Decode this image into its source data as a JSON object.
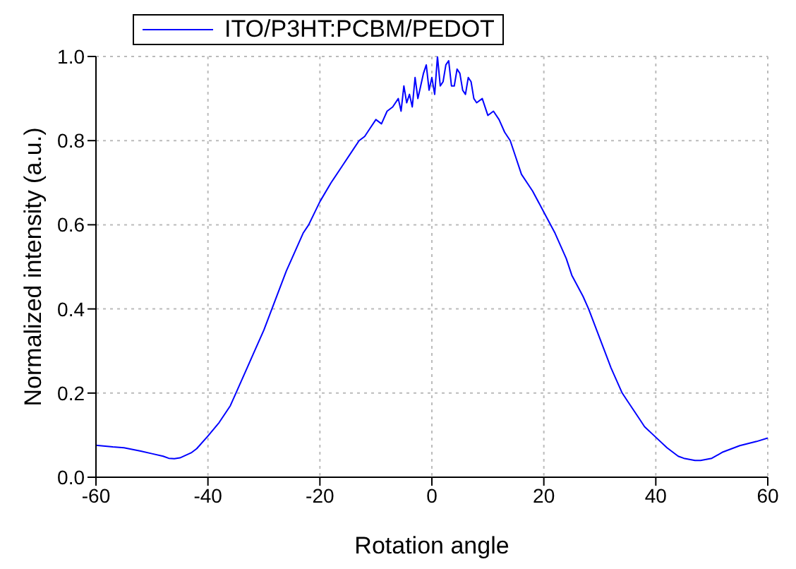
{
  "chart_data": {
    "type": "line",
    "xlabel": "Rotation angle",
    "ylabel": "Normalized intensity (a.u.)",
    "x": [
      -60,
      -57,
      -55,
      -52,
      -50,
      -48,
      -47,
      -46,
      -45,
      -43,
      -42,
      -40,
      -38,
      -36,
      -35,
      -33,
      -32,
      -30,
      -28,
      -26,
      -25,
      -23,
      -22,
      -20,
      -18,
      -16,
      -14,
      -13,
      -12,
      -11,
      -10,
      -9,
      -8,
      -7,
      -6,
      -5.5,
      -5,
      -4.5,
      -4,
      -3.5,
      -3,
      -2.5,
      -2,
      -1.5,
      -1,
      -0.5,
      0,
      0.5,
      1,
      1.5,
      2,
      2.5,
      3,
      3.5,
      4,
      4.5,
      5,
      5.5,
      6,
      6.5,
      7,
      7.5,
      8,
      9,
      10,
      11,
      12,
      13,
      14,
      15,
      16,
      18,
      20,
      22,
      24,
      25,
      27,
      28,
      30,
      32,
      34,
      35,
      37,
      38,
      40,
      42,
      44,
      45,
      47,
      48,
      50,
      52,
      55,
      58,
      60
    ],
    "series": [
      {
        "name": "ITO/P3HT:PCBM/PEDOT",
        "color": "#0000ff",
        "values": [
          0.076,
          0.072,
          0.07,
          0.062,
          0.056,
          0.05,
          0.045,
          0.044,
          0.046,
          0.058,
          0.068,
          0.098,
          0.13,
          0.17,
          0.2,
          0.26,
          0.29,
          0.35,
          0.42,
          0.49,
          0.52,
          0.58,
          0.6,
          0.655,
          0.7,
          0.74,
          0.78,
          0.8,
          0.81,
          0.83,
          0.85,
          0.84,
          0.87,
          0.88,
          0.9,
          0.87,
          0.93,
          0.89,
          0.91,
          0.88,
          0.95,
          0.9,
          0.93,
          0.96,
          0.98,
          0.92,
          0.95,
          0.91,
          1.0,
          0.93,
          0.94,
          0.98,
          0.99,
          0.93,
          0.93,
          0.97,
          0.96,
          0.92,
          0.91,
          0.95,
          0.94,
          0.9,
          0.89,
          0.9,
          0.86,
          0.87,
          0.85,
          0.82,
          0.8,
          0.76,
          0.72,
          0.68,
          0.63,
          0.58,
          0.52,
          0.48,
          0.43,
          0.4,
          0.33,
          0.26,
          0.2,
          0.18,
          0.14,
          0.12,
          0.095,
          0.07,
          0.05,
          0.045,
          0.04,
          0.04,
          0.045,
          0.06,
          0.075,
          0.085,
          0.093
        ]
      }
    ],
    "xlim": [
      -60,
      60
    ],
    "xticks": [
      -60,
      -40,
      -20,
      0,
      20,
      40,
      60
    ],
    "ylim": [
      0,
      1
    ],
    "yticks": [
      {
        "value": 0,
        "label": "0.0"
      },
      {
        "value": 0.2,
        "label": "0.2"
      },
      {
        "value": 0.4,
        "label": "0.4"
      },
      {
        "value": 0.6,
        "label": "0.6"
      },
      {
        "value": 0.8,
        "label": "0.8"
      },
      {
        "value": 1,
        "label": "1.0"
      }
    ],
    "grid": true,
    "legend": "top left",
    "marker": "none",
    "line_style": "solid"
  }
}
